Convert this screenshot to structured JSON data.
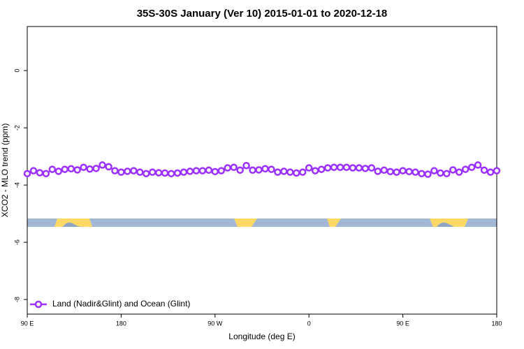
{
  "chart_data": {
    "type": "line",
    "title": "35S-30S January (Ver 10)   2015-01-01 to 2020-12-18",
    "x_label": "Longitude (deg E)",
    "y_label": "XCO2 - MLO trend (ppm)",
    "xlim": [
      90,
      540
    ],
    "ylim": [
      -8.51,
      1.54
    ],
    "xticks": [
      {
        "value": 90,
        "label": "90 E"
      },
      180,
      {
        "value": 270,
        "label": "90 W"
      },
      {
        "value": 360,
        "label": "0"
      },
      {
        "value": 450,
        "label": "90 E"
      },
      {
        "value": 540,
        "label": "180"
      }
    ],
    "yticks": [
      -8,
      -6,
      -4,
      -2,
      0
    ],
    "legend": "bottom-left",
    "x": [
      90,
      96,
      102,
      108,
      114,
      120,
      126,
      132,
      138,
      144,
      150,
      156,
      162,
      168,
      174,
      180,
      186,
      192,
      198,
      204,
      210,
      216,
      222,
      228,
      234,
      240,
      246,
      252,
      258,
      264,
      270,
      276,
      282,
      288,
      294,
      300,
      306,
      312,
      318,
      324,
      330,
      336,
      342,
      348,
      354,
      360,
      366,
      372,
      378,
      384,
      390,
      396,
      402,
      408,
      414,
      420,
      426,
      432,
      438,
      444,
      450,
      456,
      462,
      468,
      474,
      480,
      486,
      492,
      498,
      504,
      510,
      516,
      522,
      528,
      534,
      540
    ],
    "series": [
      {
        "name": "Land (Nadir&Glint) and Ocean (Glint)",
        "color": "#9b30ff",
        "values": [
          -3.6,
          -3.5,
          -3.57,
          -3.6,
          -3.45,
          -3.52,
          -3.45,
          -3.43,
          -3.47,
          -3.38,
          -3.44,
          -3.42,
          -3.3,
          -3.36,
          -3.5,
          -3.55,
          -3.52,
          -3.5,
          -3.55,
          -3.6,
          -3.55,
          -3.57,
          -3.58,
          -3.6,
          -3.58,
          -3.55,
          -3.52,
          -3.5,
          -3.5,
          -3.48,
          -3.53,
          -3.5,
          -3.4,
          -3.38,
          -3.48,
          -3.32,
          -3.48,
          -3.47,
          -3.43,
          -3.45,
          -3.55,
          -3.52,
          -3.55,
          -3.58,
          -3.55,
          -3.4,
          -3.5,
          -3.45,
          -3.4,
          -3.38,
          -3.38,
          -3.38,
          -3.4,
          -3.4,
          -3.42,
          -3.4,
          -3.52,
          -3.48,
          -3.53,
          -3.55,
          -3.5,
          -3.53,
          -3.55,
          -3.6,
          -3.62,
          -3.5,
          -3.58,
          -3.6,
          -3.47,
          -3.55,
          -3.45,
          -3.38,
          -3.3,
          -3.48,
          -3.55,
          -3.5
        ]
      }
    ]
  }
}
